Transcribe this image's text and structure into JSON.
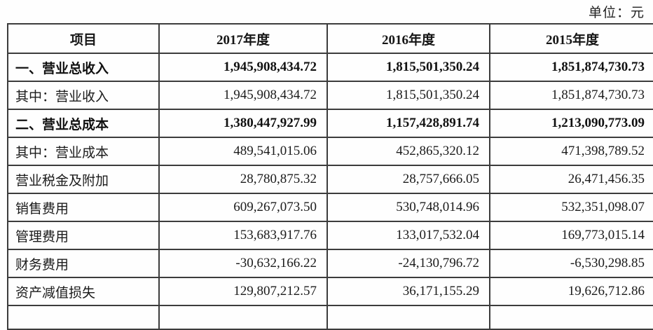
{
  "meta": {
    "unit_label": "单位：元"
  },
  "table": {
    "columns": [
      "项目",
      "2017年度",
      "2016年度",
      "2015年度"
    ],
    "rows": [
      {
        "label": "一、营业总收入",
        "bold": true,
        "values": [
          "1,945,908,434.72",
          "1,815,501,350.24",
          "1,851,874,730.73"
        ]
      },
      {
        "label": "其中：营业收入",
        "bold": false,
        "values": [
          "1,945,908,434.72",
          "1,815,501,350.24",
          "1,851,874,730.73"
        ]
      },
      {
        "label": "二、营业总成本",
        "bold": true,
        "values": [
          "1,380,447,927.99",
          "1,157,428,891.74",
          "1,213,090,773.09"
        ]
      },
      {
        "label": "其中：营业成本",
        "bold": false,
        "values": [
          "489,541,015.06",
          "452,865,320.12",
          "471,398,789.52"
        ]
      },
      {
        "label": "营业税金及附加",
        "bold": false,
        "values": [
          "28,780,875.32",
          "28,757,666.05",
          "26,471,456.35"
        ]
      },
      {
        "label": "销售费用",
        "bold": false,
        "values": [
          "609,267,073.50",
          "530,748,014.96",
          "532,351,098.07"
        ]
      },
      {
        "label": "管理费用",
        "bold": false,
        "values": [
          "153,683,917.76",
          "133,017,532.04",
          "169,773,015.14"
        ]
      },
      {
        "label": "财务费用",
        "bold": false,
        "values": [
          "-30,632,166.22",
          "-24,130,796.72",
          "-6,530,298.85"
        ]
      },
      {
        "label": "资产减值损失",
        "bold": false,
        "values": [
          "129,807,212.57",
          "36,171,155.29",
          "19,626,712.86"
        ]
      }
    ]
  },
  "colors": {
    "text": "#1b1b1b",
    "border": "#3c3c3c",
    "background": "#fefefe"
  }
}
